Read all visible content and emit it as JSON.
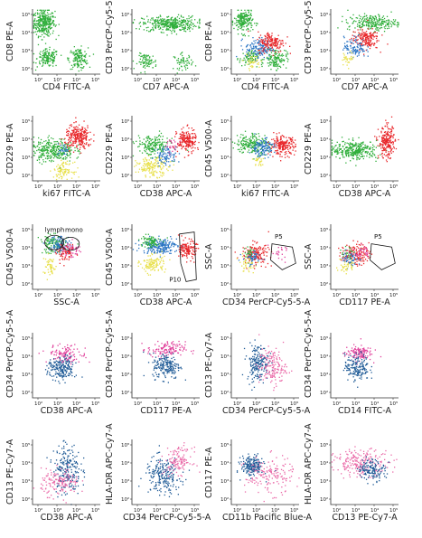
{
  "colors": {
    "green": "#2fae3a",
    "red": "#e8262a",
    "blue": "#2a74c4",
    "yellow": "#e8e04a",
    "magenta": "#e0409b",
    "navy": "#1e5a96",
    "pink": "#ea6aa8"
  },
  "tick_labels": [
    "10²",
    "10³",
    "10⁴",
    "10⁵"
  ],
  "chart_data": [
    {
      "type": "scatter",
      "xlabel": "CD4 FITC-A",
      "ylabel": "CD8 PE-A",
      "populations": [
        {
          "color": "green",
          "cx": 0.16,
          "cy": 0.8,
          "sx": 0.08,
          "sy": 0.1,
          "n": 320
        },
        {
          "color": "green",
          "cx": 0.22,
          "cy": 0.25,
          "sx": 0.08,
          "sy": 0.07,
          "n": 150
        },
        {
          "color": "green",
          "cx": 0.67,
          "cy": 0.25,
          "sx": 0.07,
          "sy": 0.08,
          "n": 150
        }
      ]
    },
    {
      "type": "scatter",
      "xlabel": "CD7 APC-A",
      "ylabel": "CD3 PerCP-Cy5-5-A",
      "populations": [
        {
          "color": "green",
          "cx": 0.55,
          "cy": 0.78,
          "sx": 0.2,
          "sy": 0.06,
          "n": 380
        },
        {
          "color": "green",
          "cx": 0.22,
          "cy": 0.2,
          "sx": 0.07,
          "sy": 0.06,
          "n": 80
        },
        {
          "color": "green",
          "cx": 0.75,
          "cy": 0.2,
          "sx": 0.07,
          "sy": 0.06,
          "n": 60
        }
      ]
    },
    {
      "type": "scatter",
      "xlabel": "CD4 FITC-A",
      "ylabel": "CD8 PE-A",
      "populations": [
        {
          "color": "green",
          "cx": 0.17,
          "cy": 0.82,
          "sx": 0.07,
          "sy": 0.09,
          "n": 200
        },
        {
          "color": "green",
          "cx": 0.65,
          "cy": 0.25,
          "sx": 0.08,
          "sy": 0.08,
          "n": 140
        },
        {
          "color": "green",
          "cx": 0.25,
          "cy": 0.25,
          "sx": 0.07,
          "sy": 0.06,
          "n": 80
        },
        {
          "color": "blue",
          "cx": 0.4,
          "cy": 0.4,
          "sx": 0.1,
          "sy": 0.08,
          "n": 140
        },
        {
          "color": "red",
          "cx": 0.58,
          "cy": 0.5,
          "sx": 0.1,
          "sy": 0.08,
          "n": 170
        },
        {
          "color": "yellow",
          "cx": 0.3,
          "cy": 0.2,
          "sx": 0.06,
          "sy": 0.05,
          "n": 40
        }
      ]
    },
    {
      "type": "scatter",
      "xlabel": "CD7 APC-A",
      "ylabel": "CD3 PerCP-Cy5-5-A",
      "populations": [
        {
          "color": "green",
          "cx": 0.6,
          "cy": 0.8,
          "sx": 0.18,
          "sy": 0.06,
          "n": 240
        },
        {
          "color": "red",
          "cx": 0.5,
          "cy": 0.55,
          "sx": 0.1,
          "sy": 0.08,
          "n": 170
        },
        {
          "color": "blue",
          "cx": 0.35,
          "cy": 0.42,
          "sx": 0.08,
          "sy": 0.08,
          "n": 100
        },
        {
          "color": "yellow",
          "cx": 0.25,
          "cy": 0.25,
          "sx": 0.05,
          "sy": 0.05,
          "n": 30
        }
      ]
    },
    {
      "type": "scatter",
      "xlabel": "ki67 FITC-A",
      "ylabel": "CD229 PE-A",
      "populations": [
        {
          "color": "green",
          "cx": 0.3,
          "cy": 0.48,
          "sx": 0.15,
          "sy": 0.09,
          "n": 300
        },
        {
          "color": "red",
          "cx": 0.67,
          "cy": 0.68,
          "sx": 0.1,
          "sy": 0.09,
          "n": 260
        },
        {
          "color": "yellow",
          "cx": 0.45,
          "cy": 0.17,
          "sx": 0.07,
          "sy": 0.06,
          "n": 90
        },
        {
          "color": "blue",
          "cx": 0.45,
          "cy": 0.48,
          "sx": 0.05,
          "sy": 0.05,
          "n": 25
        }
      ]
    },
    {
      "type": "scatter",
      "xlabel": "CD38 APC-A",
      "ylabel": "CD229 PE-A",
      "populations": [
        {
          "color": "green",
          "cx": 0.3,
          "cy": 0.55,
          "sx": 0.12,
          "sy": 0.08,
          "n": 180
        },
        {
          "color": "red",
          "cx": 0.8,
          "cy": 0.62,
          "sx": 0.07,
          "sy": 0.09,
          "n": 200
        },
        {
          "color": "yellow",
          "cx": 0.3,
          "cy": 0.22,
          "sx": 0.12,
          "sy": 0.07,
          "n": 160
        },
        {
          "color": "blue",
          "cx": 0.5,
          "cy": 0.4,
          "sx": 0.08,
          "sy": 0.07,
          "n": 90
        },
        {
          "color": "magenta",
          "cx": 0.58,
          "cy": 0.55,
          "sx": 0.05,
          "sy": 0.05,
          "n": 25
        }
      ]
    },
    {
      "type": "scatter",
      "xlabel": "ki67 FITC-A",
      "ylabel": "CD45 V500-A",
      "populations": [
        {
          "color": "green",
          "cx": 0.3,
          "cy": 0.58,
          "sx": 0.12,
          "sy": 0.08,
          "n": 200
        },
        {
          "color": "blue",
          "cx": 0.45,
          "cy": 0.52,
          "sx": 0.09,
          "sy": 0.07,
          "n": 130
        },
        {
          "color": "red",
          "cx": 0.75,
          "cy": 0.55,
          "sx": 0.09,
          "sy": 0.07,
          "n": 200
        },
        {
          "color": "yellow",
          "cx": 0.4,
          "cy": 0.3,
          "sx": 0.05,
          "sy": 0.05,
          "n": 25
        }
      ]
    },
    {
      "type": "scatter",
      "xlabel": "CD38 APC-A",
      "ylabel": "CD229 PE-A",
      "populations": [
        {
          "color": "green",
          "cx": 0.35,
          "cy": 0.48,
          "sx": 0.17,
          "sy": 0.07,
          "n": 320
        },
        {
          "color": "red",
          "cx": 0.82,
          "cy": 0.6,
          "sx": 0.06,
          "sy": 0.12,
          "n": 220
        }
      ]
    },
    {
      "type": "scatter",
      "xlabel": "SSC-A",
      "ylabel": "CD45 V500-A",
      "gates": [
        "lymph",
        "mono"
      ],
      "populations": [
        {
          "color": "green",
          "cx": 0.3,
          "cy": 0.7,
          "sx": 0.1,
          "sy": 0.07,
          "n": 120
        },
        {
          "color": "blue",
          "cx": 0.4,
          "cy": 0.7,
          "sx": 0.08,
          "sy": 0.07,
          "n": 90
        },
        {
          "color": "magenta",
          "cx": 0.55,
          "cy": 0.62,
          "sx": 0.07,
          "sy": 0.06,
          "n": 60
        },
        {
          "color": "red",
          "cx": 0.48,
          "cy": 0.55,
          "sx": 0.07,
          "sy": 0.06,
          "n": 60
        },
        {
          "color": "yellow",
          "cx": 0.25,
          "cy": 0.35,
          "sx": 0.05,
          "sy": 0.08,
          "n": 50
        }
      ]
    },
    {
      "type": "scatter",
      "xlabel": "CD38 APC-A",
      "ylabel": "CD45 V500-A",
      "gates": [
        "P10"
      ],
      "populations": [
        {
          "color": "blue",
          "cx": 0.4,
          "cy": 0.68,
          "sx": 0.13,
          "sy": 0.06,
          "n": 220
        },
        {
          "color": "green",
          "cx": 0.25,
          "cy": 0.74,
          "sx": 0.08,
          "sy": 0.05,
          "n": 80
        },
        {
          "color": "red",
          "cx": 0.82,
          "cy": 0.62,
          "sx": 0.06,
          "sy": 0.07,
          "n": 140
        },
        {
          "color": "yellow",
          "cx": 0.3,
          "cy": 0.4,
          "sx": 0.09,
          "sy": 0.07,
          "n": 120
        }
      ]
    },
    {
      "type": "scatter",
      "xlabel": "CD34 PerCP-Cy5-5-A",
      "ylabel": "SSC-A",
      "gates": [
        "P5"
      ],
      "populations": [
        {
          "color": "red",
          "cx": 0.35,
          "cy": 0.55,
          "sx": 0.1,
          "sy": 0.08,
          "n": 150
        },
        {
          "color": "blue",
          "cx": 0.3,
          "cy": 0.48,
          "sx": 0.07,
          "sy": 0.06,
          "n": 60
        },
        {
          "color": "yellow",
          "cx": 0.22,
          "cy": 0.4,
          "sx": 0.06,
          "sy": 0.06,
          "n": 40
        },
        {
          "color": "green",
          "cx": 0.25,
          "cy": 0.58,
          "sx": 0.05,
          "sy": 0.05,
          "n": 20
        },
        {
          "color": "magenta",
          "cx": 0.7,
          "cy": 0.55,
          "sx": 0.08,
          "sy": 0.06,
          "n": 20
        }
      ]
    },
    {
      "type": "scatter",
      "xlabel": "CD117 PE-A",
      "ylabel": "SSC-A",
      "gates": [
        "P5"
      ],
      "populations": [
        {
          "color": "red",
          "cx": 0.35,
          "cy": 0.55,
          "sx": 0.1,
          "sy": 0.08,
          "n": 150
        },
        {
          "color": "blue",
          "cx": 0.3,
          "cy": 0.48,
          "sx": 0.07,
          "sy": 0.06,
          "n": 60
        },
        {
          "color": "yellow",
          "cx": 0.22,
          "cy": 0.38,
          "sx": 0.06,
          "sy": 0.06,
          "n": 40
        },
        {
          "color": "green",
          "cx": 0.25,
          "cy": 0.58,
          "sx": 0.05,
          "sy": 0.05,
          "n": 20
        },
        {
          "color": "magenta",
          "cx": 0.45,
          "cy": 0.58,
          "sx": 0.05,
          "sy": 0.05,
          "n": 30
        }
      ]
    },
    {
      "type": "scatter",
      "xlabel": "CD38 APC-A",
      "ylabel": "CD34 PerCP-Cy5-5-A",
      "populations": [
        {
          "color": "magenta",
          "cx": 0.5,
          "cy": 0.68,
          "sx": 0.14,
          "sy": 0.07,
          "n": 120
        },
        {
          "color": "navy",
          "cx": 0.42,
          "cy": 0.45,
          "sx": 0.1,
          "sy": 0.09,
          "n": 200
        }
      ]
    },
    {
      "type": "scatter",
      "xlabel": "CD117 PE-A",
      "ylabel": "CD34 PerCP-Cy5-5-A",
      "populations": [
        {
          "color": "magenta",
          "cx": 0.5,
          "cy": 0.75,
          "sx": 0.14,
          "sy": 0.06,
          "n": 130
        },
        {
          "color": "navy",
          "cx": 0.5,
          "cy": 0.5,
          "sx": 0.1,
          "sy": 0.1,
          "n": 190
        }
      ]
    },
    {
      "type": "scatter",
      "xlabel": "CD34 PerCP-Cy5-5-A",
      "ylabel": "CD13 PE-Cy7-A",
      "populations": [
        {
          "color": "navy",
          "cx": 0.38,
          "cy": 0.55,
          "sx": 0.08,
          "sy": 0.14,
          "n": 190
        },
        {
          "color": "pink",
          "cx": 0.6,
          "cy": 0.48,
          "sx": 0.1,
          "sy": 0.14,
          "n": 160
        }
      ]
    },
    {
      "type": "scatter",
      "xlabel": "CD14 FITC-A",
      "ylabel": "CD34 PerCP-Cy5-5-A",
      "populations": [
        {
          "color": "magenta",
          "cx": 0.4,
          "cy": 0.7,
          "sx": 0.1,
          "sy": 0.06,
          "n": 120
        },
        {
          "color": "navy",
          "cx": 0.38,
          "cy": 0.48,
          "sx": 0.09,
          "sy": 0.1,
          "n": 170
        }
      ]
    },
    {
      "type": "scatter",
      "xlabel": "CD38 APC-A",
      "ylabel": "CD13 PE-Cy7-A",
      "populations": [
        {
          "color": "navy",
          "cx": 0.5,
          "cy": 0.55,
          "sx": 0.1,
          "sy": 0.2,
          "n": 220
        },
        {
          "color": "pink",
          "cx": 0.4,
          "cy": 0.35,
          "sx": 0.14,
          "sy": 0.1,
          "n": 150
        }
      ]
    },
    {
      "type": "scatter",
      "xlabel": "CD34 PerCP-Cy5-5-A",
      "ylabel": "HLA-DR APC-Cy7-A",
      "populations": [
        {
          "color": "navy",
          "cx": 0.45,
          "cy": 0.45,
          "sx": 0.13,
          "sy": 0.14,
          "n": 220
        },
        {
          "color": "pink",
          "cx": 0.68,
          "cy": 0.68,
          "sx": 0.1,
          "sy": 0.1,
          "n": 130
        }
      ]
    },
    {
      "type": "scatter",
      "xlabel": "CD11b Pacific Blue-A",
      "ylabel": "CD117 PE-A",
      "populations": [
        {
          "color": "navy",
          "cx": 0.3,
          "cy": 0.6,
          "sx": 0.08,
          "sy": 0.08,
          "n": 200
        },
        {
          "color": "pink",
          "cx": 0.55,
          "cy": 0.45,
          "sx": 0.18,
          "sy": 0.14,
          "n": 160
        }
      ]
    },
    {
      "type": "scatter",
      "xlabel": "CD13 PE-Cy7-A",
      "ylabel": "HLA-DR APC-Cy7-A",
      "populations": [
        {
          "color": "pink",
          "cx": 0.45,
          "cy": 0.65,
          "sx": 0.2,
          "sy": 0.1,
          "n": 220
        },
        {
          "color": "navy",
          "cx": 0.6,
          "cy": 0.55,
          "sx": 0.1,
          "sy": 0.08,
          "n": 140
        }
      ]
    }
  ]
}
